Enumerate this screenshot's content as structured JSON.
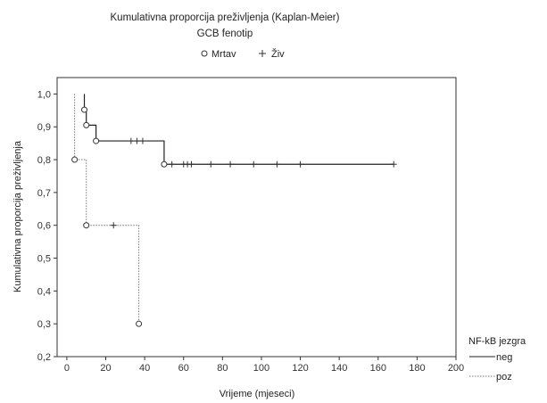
{
  "chart_data": {
    "type": "line",
    "title": "Kumulativna proporcija preživljenja (Kaplan-Meier)",
    "subtitle": "GCB fenotip",
    "marker_legend": [
      {
        "symbol": "o",
        "label": "Mrtav"
      },
      {
        "symbol": "+",
        "label": "Živ"
      }
    ],
    "xlabel": "Vrijeme (mjeseci)",
    "ylabel": "Kumulativna proporcija preživljenja",
    "xlim": [
      -5,
      200
    ],
    "ylim": [
      0.2,
      1.05
    ],
    "xticks": [
      0,
      20,
      40,
      60,
      80,
      100,
      120,
      140,
      160,
      180,
      200
    ],
    "yticks": [
      "1,0",
      "0,9",
      "0,8",
      "0,7",
      "0,6",
      "0,5",
      "0,4",
      "0,3",
      "0,2"
    ],
    "ytick_values": [
      1.0,
      0.9,
      0.8,
      0.7,
      0.6,
      0.5,
      0.4,
      0.3,
      0.2
    ],
    "grid": false,
    "legend_title": "NF-kB jezgra",
    "legend_position": "bottom-right",
    "series": [
      {
        "name": "neg",
        "line_style": "solid",
        "color": "#222222",
        "steps": [
          [
            0,
            1.0
          ],
          [
            9,
            0.952
          ],
          [
            10,
            0.905
          ],
          [
            15,
            0.857
          ],
          [
            50,
            0.786
          ],
          [
            168,
            0.786
          ]
        ],
        "events": [
          [
            9,
            0.952
          ],
          [
            10,
            0.905
          ],
          [
            15,
            0.857
          ],
          [
            50,
            0.786
          ]
        ],
        "censored": [
          [
            33,
            0.857
          ],
          [
            36,
            0.857
          ],
          [
            39,
            0.857
          ],
          [
            54,
            0.786
          ],
          [
            60,
            0.786
          ],
          [
            62,
            0.786
          ],
          [
            64,
            0.786
          ],
          [
            74,
            0.786
          ],
          [
            84,
            0.786
          ],
          [
            96,
            0.786
          ],
          [
            108,
            0.786
          ],
          [
            120,
            0.786
          ],
          [
            168,
            0.786
          ]
        ]
      },
      {
        "name": "poz",
        "line_style": "dotted",
        "color": "#777777",
        "steps": [
          [
            0,
            1.0
          ],
          [
            4,
            0.8
          ],
          [
            10,
            0.6
          ],
          [
            37,
            0.3
          ]
        ],
        "events": [
          [
            4,
            0.8
          ],
          [
            10,
            0.6
          ],
          [
            37,
            0.3
          ]
        ],
        "censored": [
          [
            24,
            0.6
          ]
        ]
      }
    ]
  }
}
